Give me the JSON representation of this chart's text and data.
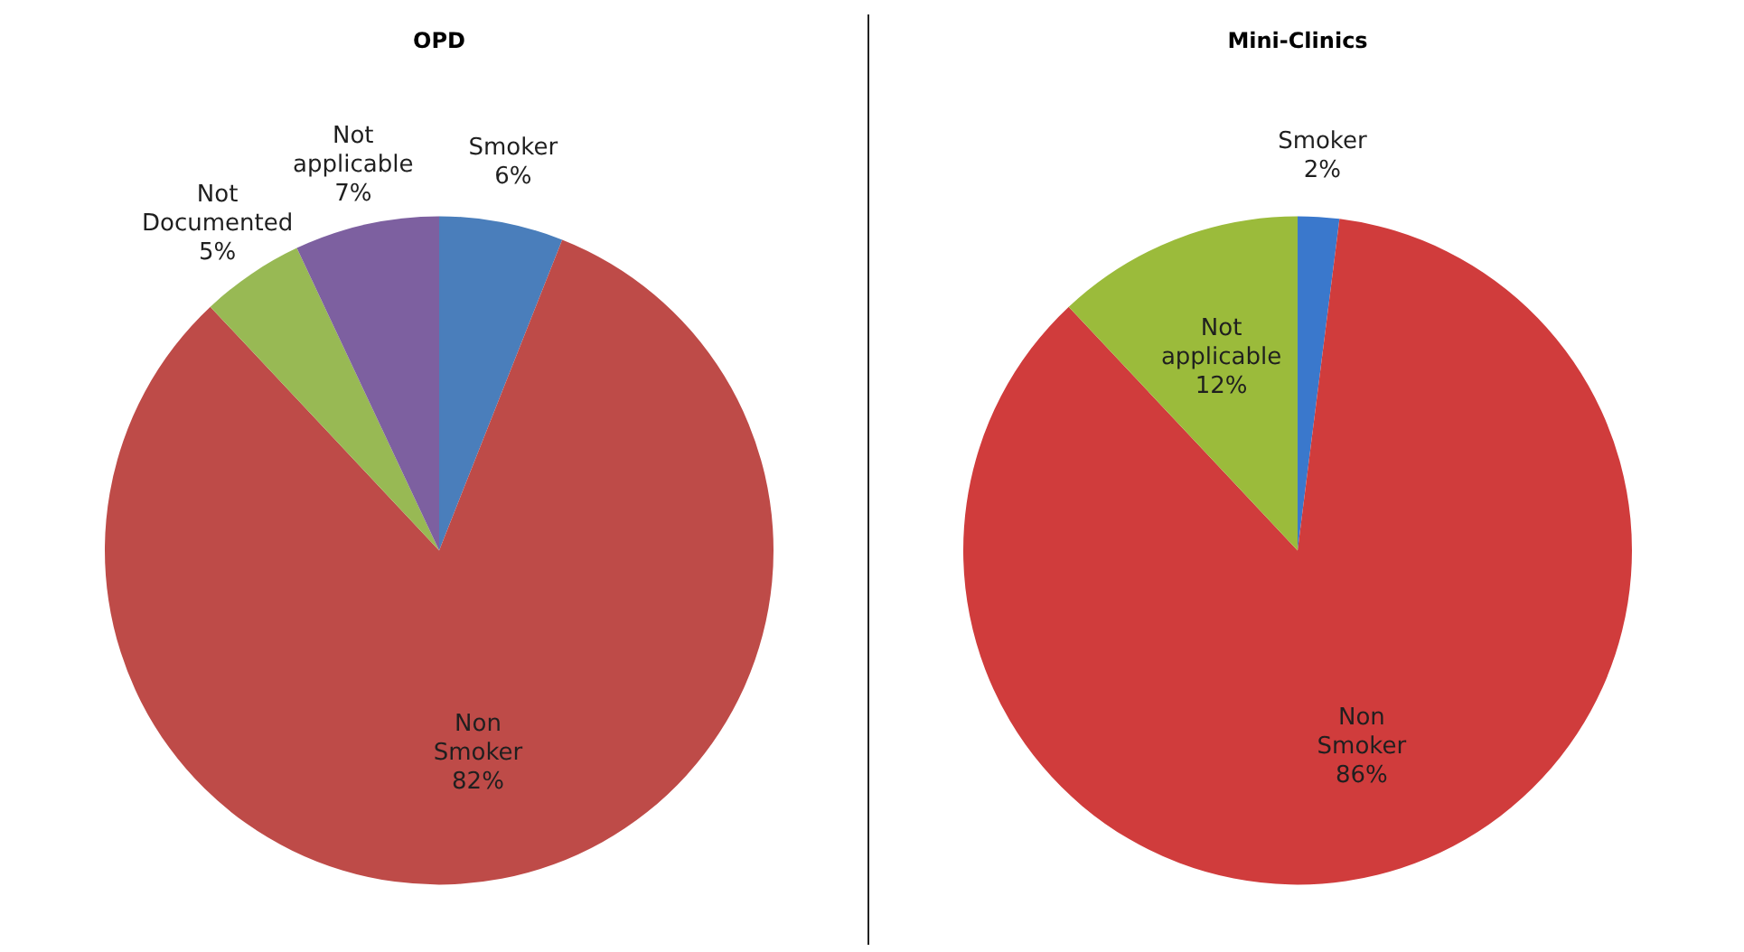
{
  "chart_data": [
    {
      "type": "pie",
      "title": "OPD",
      "categories": [
        "Smoker",
        "Non Smoker",
        "Not Documented",
        "Not applicable"
      ],
      "values": [
        6,
        82,
        5,
        7
      ],
      "colors": [
        "#4a7ebb",
        "#be4b48",
        "#98b954",
        "#7d60a0"
      ],
      "value_labels": [
        "6%",
        "82%",
        "5%",
        "7%"
      ],
      "legend": false
    },
    {
      "type": "pie",
      "title": "Mini-Clinics",
      "categories": [
        "Smoker",
        "Non Smoker",
        "Not applicable"
      ],
      "values": [
        2,
        86,
        12
      ],
      "colors": [
        "#3a78cc",
        "#d03c3c",
        "#9bbb3b"
      ],
      "value_labels": [
        "2%",
        "86%",
        "12%"
      ],
      "legend": false
    }
  ]
}
